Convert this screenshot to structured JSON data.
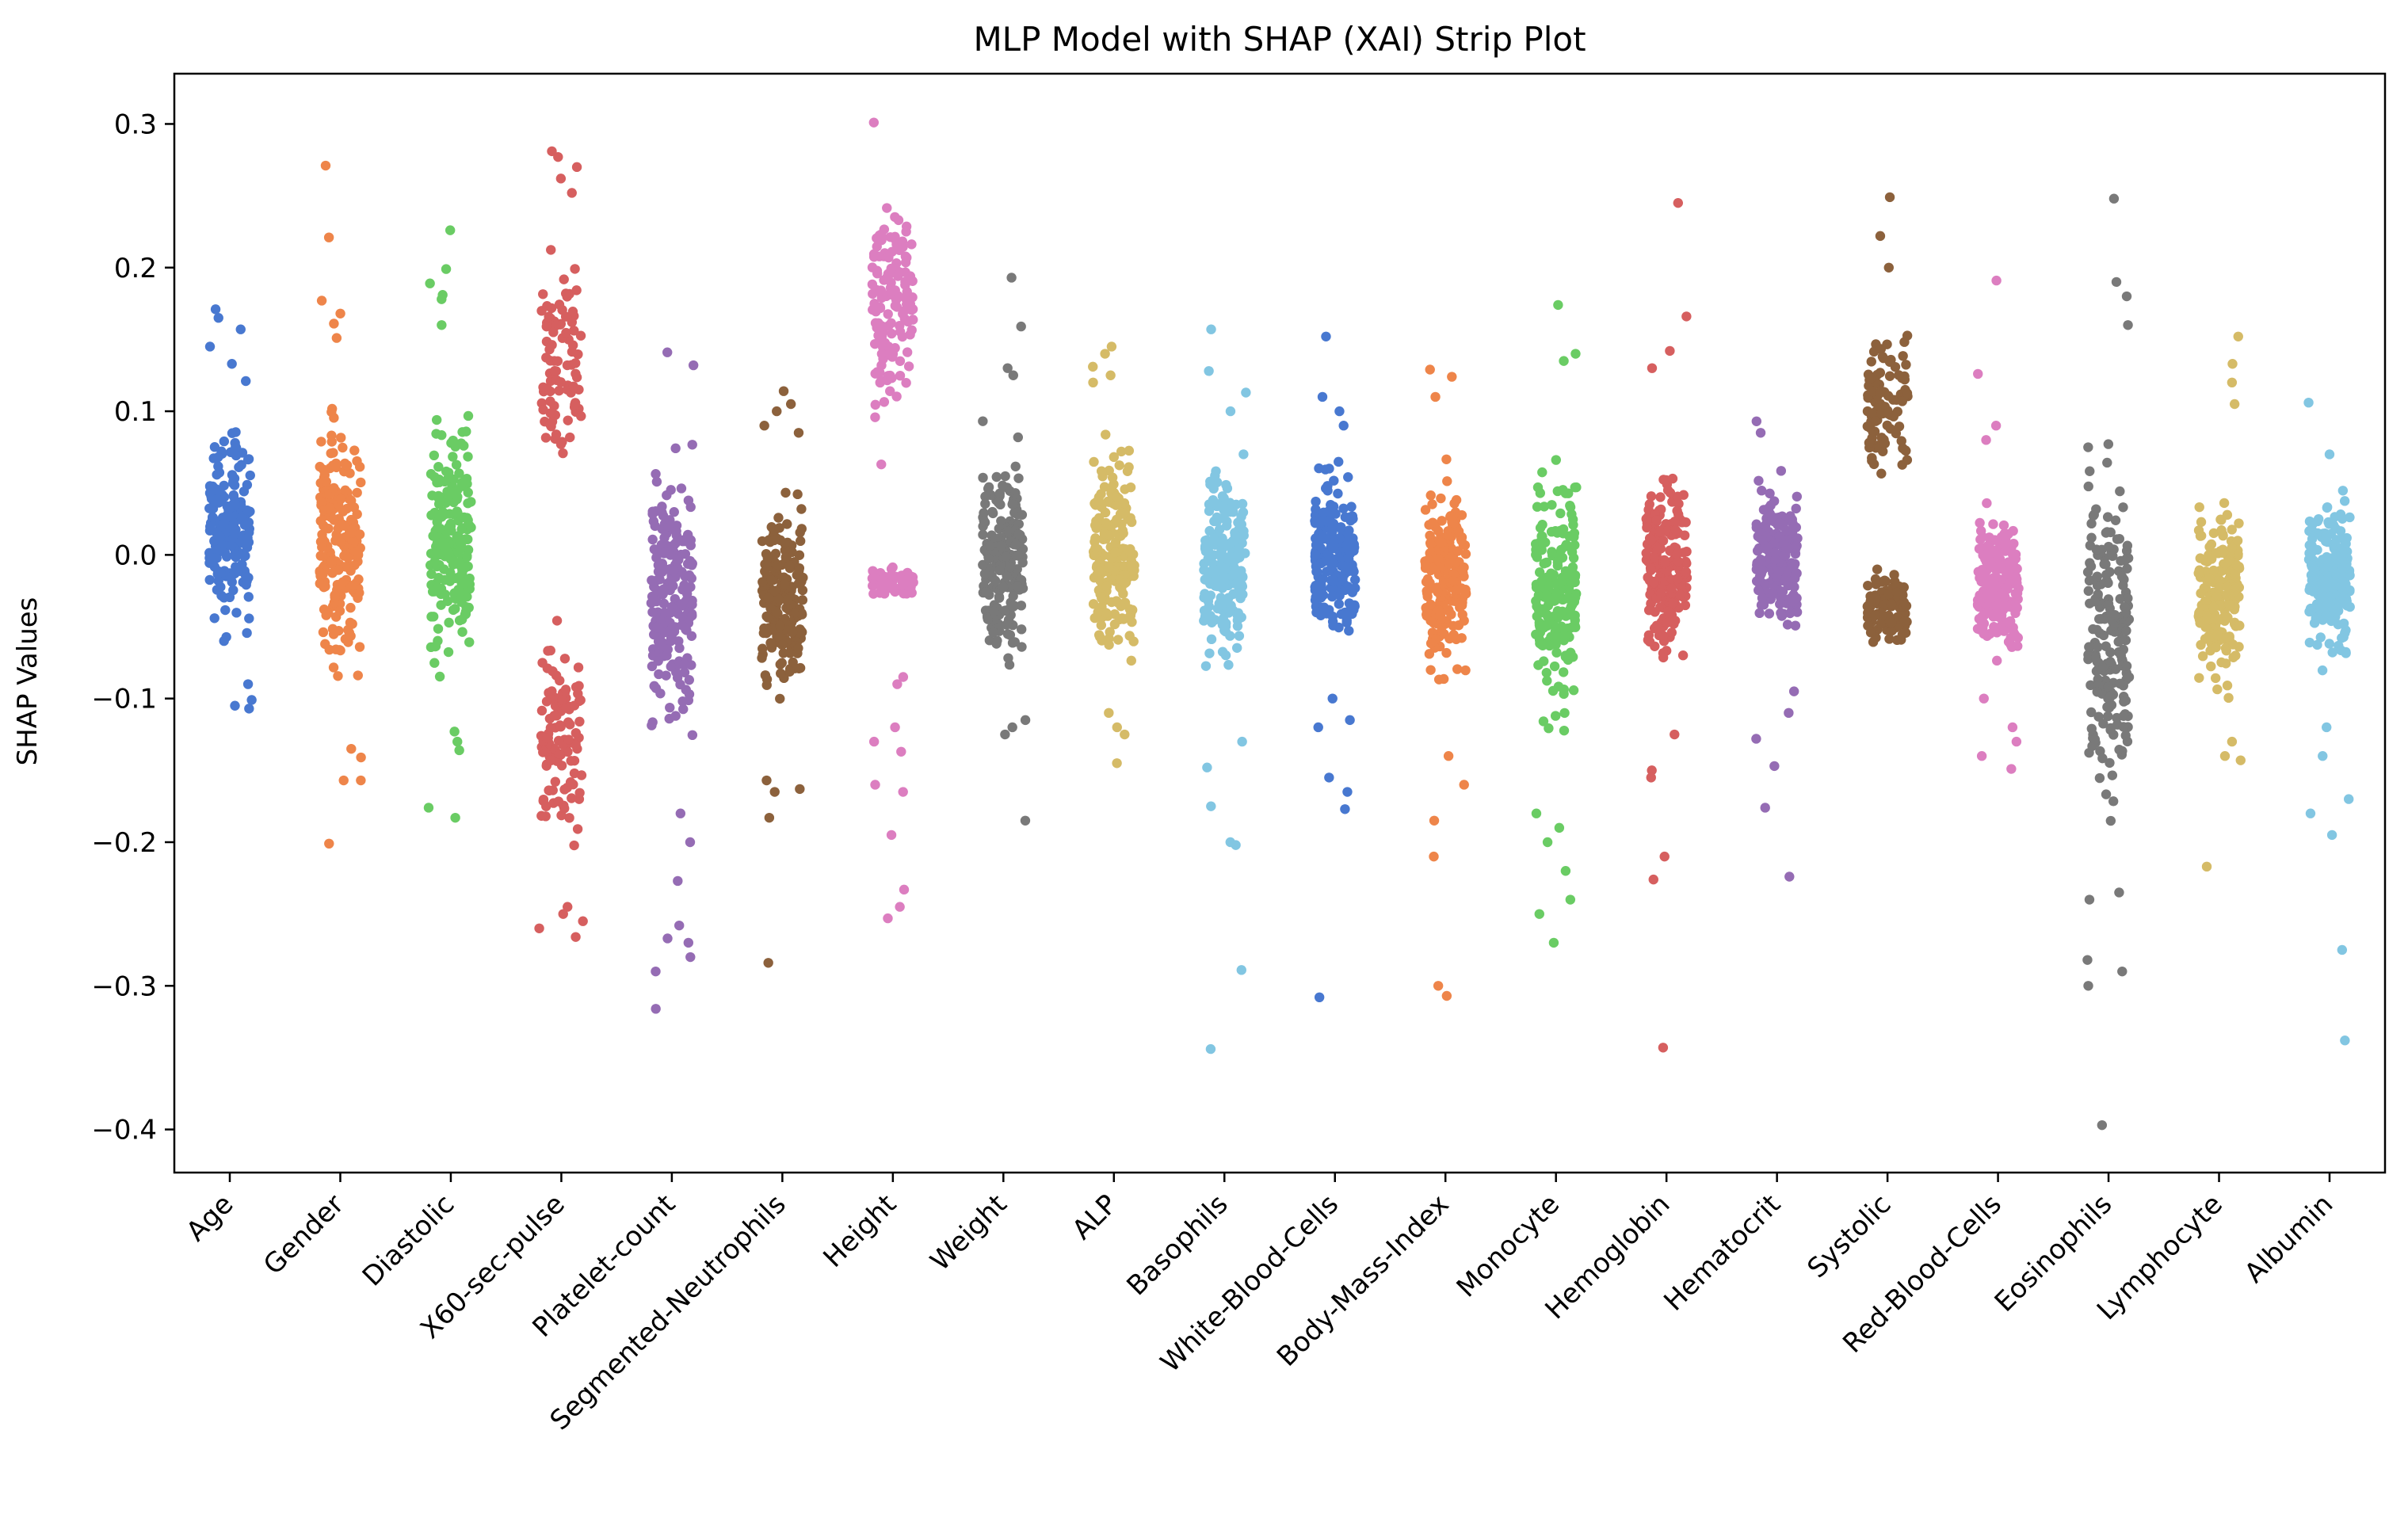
{
  "chart_data": {
    "type": "scatter",
    "subtype": "strip",
    "title": "MLP Model with SHAP (XAI) Strip Plot",
    "xlabel": "",
    "ylabel": "SHAP Values",
    "ylim": [
      -0.43,
      0.335
    ],
    "yticks": [
      0.3,
      0.2,
      0.1,
      0.0,
      -0.1,
      -0.2,
      -0.3,
      -0.4
    ],
    "ytick_labels": [
      "0.3",
      "0.2",
      "0.1",
      "0.0",
      "−0.1",
      "−0.2",
      "−0.3",
      "−0.4"
    ],
    "grid": false,
    "legend": "none",
    "categories": [
      "Age",
      "Gender",
      "Diastolic",
      "X60-sec-pulse",
      "Platelet-count",
      "Segmented-Neutrophils",
      "Height",
      "Weight",
      "ALP",
      "Basophils",
      "White-Blood-Cells",
      "Body-Mass-Index",
      "Monocyte",
      "Hemoglobin",
      "Hematocrit",
      "Systolic",
      "Red-Blood-Cells",
      "Eosinophils",
      "Lymphocyte",
      "Albumin"
    ],
    "series": [
      {
        "category": "Age",
        "color": "#4878d0",
        "core": [
          [
            -0.075,
            0.11,
            1.0
          ]
        ],
        "outliers": [
          0.171,
          0.165,
          0.157,
          0.145,
          0.133,
          0.121,
          -0.09,
          -0.101,
          -0.107,
          -0.105
        ]
      },
      {
        "category": "Gender",
        "color": "#ee854a",
        "core": [
          [
            -0.12,
            0.13,
            1.0
          ]
        ],
        "outliers": [
          0.271,
          0.221,
          0.177,
          0.168,
          0.161,
          0.151,
          -0.135,
          -0.141,
          -0.157,
          -0.157,
          -0.201
        ]
      },
      {
        "category": "Diastolic",
        "color": "#6acc64",
        "core": [
          [
            -0.11,
            0.13,
            1.0
          ]
        ],
        "outliers": [
          0.226,
          0.199,
          0.189,
          0.181,
          0.178,
          0.16,
          -0.123,
          -0.13,
          -0.136,
          -0.176,
          -0.183
        ]
      },
      {
        "category": "X60-sec-pulse",
        "color": "#d65f5f",
        "core": [
          [
            0.04,
            0.24,
            0.45
          ],
          [
            -0.24,
            -0.025,
            0.55
          ]
        ],
        "outliers": [
          0.281,
          0.277,
          0.27,
          0.262,
          0.252,
          -0.245,
          -0.25,
          -0.255,
          -0.26,
          -0.266
        ]
      },
      {
        "category": "Platelet-count",
        "color": "#956cb4",
        "core": [
          [
            -0.16,
            0.1,
            1.0
          ]
        ],
        "outliers": [
          0.141,
          0.132,
          -0.18,
          -0.2,
          -0.227,
          -0.258,
          -0.267,
          -0.27,
          -0.28,
          -0.29,
          -0.316
        ]
      },
      {
        "category": "Segmented-Neutrophils",
        "color": "#8c613c",
        "core": [
          [
            -0.12,
            0.06,
            1.0
          ]
        ],
        "outliers": [
          0.114,
          0.105,
          0.1,
          0.09,
          0.085,
          -0.157,
          -0.163,
          -0.165,
          -0.183,
          -0.284
        ]
      },
      {
        "category": "Height",
        "color": "#dc7ec0",
        "core": [
          [
            0.06,
            0.29,
            0.7
          ],
          [
            -0.035,
            -0.005,
            0.3
          ]
        ],
        "outliers": [
          0.301,
          0.063,
          -0.085,
          -0.09,
          -0.12,
          -0.13,
          -0.137,
          -0.16,
          -0.165,
          -0.195,
          -0.233,
          -0.245,
          -0.253
        ]
      },
      {
        "category": "Weight",
        "color": "#797979",
        "core": [
          [
            -0.11,
            0.11,
            1.0
          ]
        ],
        "outliers": [
          0.193,
          0.159,
          0.13,
          0.125,
          -0.115,
          -0.12,
          -0.125,
          -0.185
        ]
      },
      {
        "category": "ALP",
        "color": "#d5bb67",
        "core": [
          [
            -0.1,
            0.1,
            1.0
          ]
        ],
        "outliers": [
          0.145,
          0.14,
          0.131,
          0.125,
          0.12,
          -0.11,
          -0.12,
          -0.125,
          -0.145
        ]
      },
      {
        "category": "Basophils",
        "color": "#82c6e2",
        "core": [
          [
            -0.1,
            0.085,
            1.0
          ]
        ],
        "outliers": [
          0.157,
          0.128,
          0.113,
          0.1,
          -0.13,
          -0.148,
          -0.175,
          -0.2,
          -0.202,
          -0.289,
          -0.344
        ]
      },
      {
        "category": "White-Blood-Cells",
        "color": "#4878d0",
        "core": [
          [
            -0.08,
            0.08,
            1.0
          ]
        ],
        "outliers": [
          0.152,
          0.11,
          0.1,
          0.09,
          -0.1,
          -0.115,
          -0.12,
          -0.155,
          -0.165,
          -0.177,
          -0.308
        ]
      },
      {
        "category": "Body-Mass-Index",
        "color": "#ee854a",
        "core": [
          [
            -0.12,
            0.09,
            1.0
          ]
        ],
        "outliers": [
          0.129,
          0.124,
          0.11,
          -0.14,
          -0.16,
          -0.185,
          -0.21,
          -0.3,
          -0.307
        ]
      },
      {
        "category": "Monocyte",
        "color": "#6acc64",
        "core": [
          [
            -0.15,
            0.11,
            1.0
          ]
        ],
        "outliers": [
          0.174,
          0.14,
          0.135,
          -0.18,
          -0.19,
          -0.2,
          -0.22,
          -0.24,
          -0.25,
          -0.27
        ]
      },
      {
        "category": "Hemoglobin",
        "color": "#d65f5f",
        "core": [
          [
            -0.1,
            0.09,
            1.0
          ]
        ],
        "outliers": [
          0.245,
          0.166,
          0.142,
          0.13,
          -0.125,
          -0.15,
          -0.155,
          -0.21,
          -0.226,
          -0.343
        ]
      },
      {
        "category": "Hematocrit",
        "color": "#956cb4",
        "core": [
          [
            -0.08,
            0.07,
            1.0
          ]
        ],
        "outliers": [
          0.093,
          0.085,
          -0.095,
          -0.11,
          -0.128,
          -0.147,
          -0.176,
          -0.224
        ]
      },
      {
        "category": "Systolic",
        "color": "#8c613c",
        "core": [
          [
            0.03,
            0.18,
            0.5
          ],
          [
            -0.08,
            0.005,
            0.5
          ]
        ],
        "outliers": [
          0.249,
          0.222,
          0.2
        ]
      },
      {
        "category": "Red-Blood-Cells",
        "color": "#dc7ec0",
        "core": [
          [
            -0.09,
            0.05,
            1.0
          ]
        ],
        "outliers": [
          0.191,
          0.126,
          0.09,
          0.08,
          -0.1,
          -0.12,
          -0.13,
          -0.14,
          -0.149
        ]
      },
      {
        "category": "Eosinophils",
        "color": "#797979",
        "core": [
          [
            -0.23,
            0.12,
            1.0
          ]
        ],
        "outliers": [
          0.248,
          0.19,
          0.18,
          0.16,
          -0.235,
          -0.24,
          -0.282,
          -0.29,
          -0.3,
          -0.397
        ]
      },
      {
        "category": "Lymphocyte",
        "color": "#d5bb67",
        "core": [
          [
            -0.12,
            0.07,
            1.0
          ]
        ],
        "outliers": [
          0.152,
          0.133,
          0.12,
          0.105,
          -0.13,
          -0.14,
          -0.143,
          -0.217
        ]
      },
      {
        "category": "Albumin",
        "color": "#82c6e2",
        "core": [
          [
            -0.1,
            0.065,
            1.0
          ]
        ],
        "outliers": [
          0.106,
          0.07,
          -0.12,
          -0.14,
          -0.17,
          -0.18,
          -0.195,
          -0.275,
          -0.338
        ]
      }
    ]
  }
}
